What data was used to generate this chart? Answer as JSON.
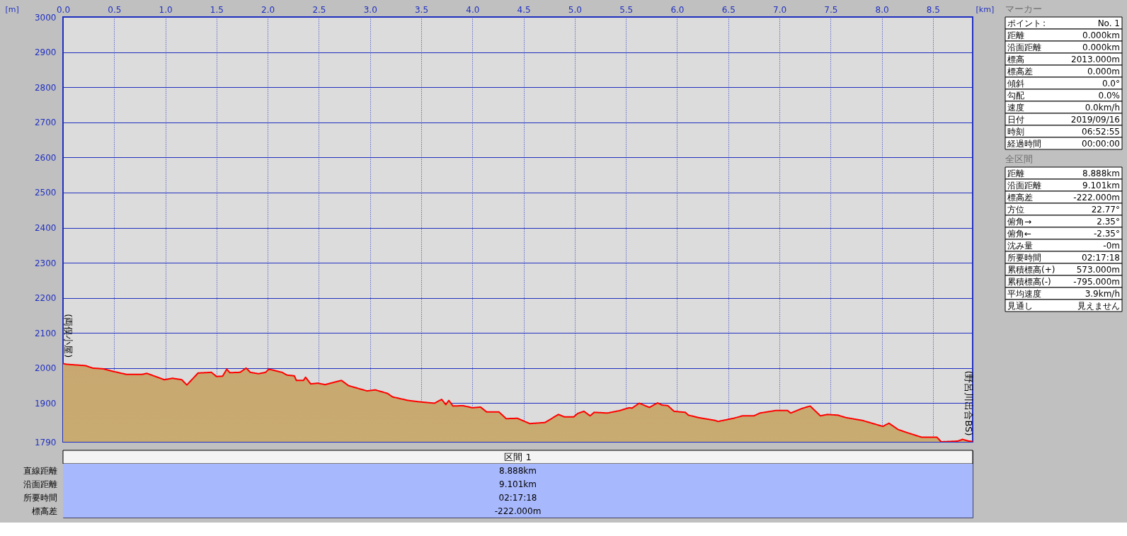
{
  "chart_data": [
    {
      "type": "area",
      "xlabel": "[km]",
      "ylabel": "[m]",
      "x": [
        0,
        0.03,
        0.22,
        0.29,
        0.39,
        0.47,
        0.62,
        0.77,
        0.82,
        0.99,
        1.07,
        1.16,
        1.21,
        1.32,
        1.45,
        1.5,
        1.56,
        1.6,
        1.63,
        1.73,
        1.79,
        1.83,
        1.91,
        1.98,
        2.01,
        2.04,
        2.14,
        2.19,
        2.26,
        2.28,
        2.35,
        2.37,
        2.42,
        2.49,
        2.56,
        2.72,
        2.79,
        2.97,
        3.05,
        3.17,
        3.22,
        3.37,
        3.48,
        3.63,
        3.7,
        3.74,
        3.77,
        3.81,
        3.91,
        4.0,
        4.08,
        4.14,
        4.26,
        4.33,
        4.44,
        4.56,
        4.71,
        4.84,
        4.9,
        4.99,
        5.03,
        5.09,
        5.15,
        5.19,
        5.32,
        5.44,
        5.53,
        5.56,
        5.63,
        5.73,
        5.81,
        5.85,
        5.91,
        5.97,
        6.08,
        6.11,
        6.21,
        6.37,
        6.4,
        6.55,
        6.64,
        6.75,
        6.81,
        6.96,
        7.08,
        7.11,
        7.22,
        7.3,
        7.4,
        7.47,
        7.57,
        7.65,
        7.81,
        8.01,
        8.07,
        8.16,
        8.25,
        8.39,
        8.54,
        8.58,
        8.74,
        8.79,
        8.85,
        8.888
      ],
      "series": [
        {
          "color": "#ff0000",
          "values": [
            2013,
            2011,
            2007,
            2000,
            1998,
            1992,
            1982,
            1982,
            1985,
            1967,
            1971,
            1967,
            1952,
            1986,
            1988,
            1976,
            1977,
            1997,
            1987,
            1988,
            2000,
            1988,
            1984,
            1988,
            1997,
            1995,
            1988,
            1980,
            1978,
            1965,
            1965,
            1974,
            1955,
            1957,
            1953,
            1965,
            1950,
            1935,
            1938,
            1928,
            1918,
            1908,
            1904,
            1900,
            1911,
            1896,
            1908,
            1892,
            1893,
            1887,
            1889,
            1875,
            1875,
            1856,
            1857,
            1842,
            1845,
            1868,
            1861,
            1861,
            1871,
            1877,
            1864,
            1874,
            1872,
            1879,
            1887,
            1886,
            1900,
            1888,
            1901,
            1895,
            1893,
            1877,
            1874,
            1866,
            1859,
            1851,
            1848,
            1857,
            1864,
            1864,
            1872,
            1879,
            1879,
            1872,
            1885,
            1892,
            1864,
            1868,
            1866,
            1859,
            1851,
            1834,
            1843,
            1825,
            1816,
            1803,
            1803,
            1790,
            1792,
            1797,
            1792,
            1791
          ]
        }
      ],
      "xlim": [
        0,
        8.888
      ],
      "ylim": [
        1790,
        3000
      ],
      "xticks": [
        {
          "value": 0,
          "label": "0.0"
        },
        0.5,
        {
          "value": 1,
          "label": "1.0"
        },
        1.5,
        {
          "value": 2,
          "label": "2.0"
        },
        2.5,
        {
          "value": 3,
          "label": "3.0"
        },
        3.5,
        {
          "value": 4,
          "label": "4.0"
        },
        4.5,
        {
          "value": 5,
          "label": "5.0"
        },
        5.5,
        {
          "value": 6,
          "label": "6.0"
        },
        6.5,
        {
          "value": 7,
          "label": "7.0"
        },
        7.5,
        {
          "value": 8,
          "label": "8.0"
        },
        8.5
      ],
      "yticks": [
        1790,
        1900,
        2000,
        2100,
        2200,
        2300,
        2400,
        2500,
        2600,
        2700,
        2800,
        2900,
        3000
      ],
      "grid": true,
      "annotations": [
        {
          "text": "(両俣小屋)",
          "x": 0,
          "y": 2013
        },
        {
          "text": "(野呂川出合BS)",
          "x": 8.888,
          "y": 1791
        }
      ]
    },
    {
      "type": "other",
      "title": "マーカー",
      "annotations": [
        ":"
      ],
      "categories": [
        "ポイント",
        "距離",
        "沿面距離",
        "標高",
        "標高差",
        "傾斜",
        "勾配",
        "速度",
        "日付",
        "時刻",
        "経過時間"
      ],
      "value_labels": [
        "No. 1",
        "0.000km",
        "0.000km",
        "2013.000m",
        "0.000m",
        "0.0°",
        "0.0%",
        "0.0km/h",
        "2019/09/16",
        "06:52:55",
        "00:00:00"
      ]
    },
    {
      "type": "other",
      "title": "全区間",
      "categories": [
        "距離",
        "沿面距離",
        "標高差",
        "方位",
        "俯角→",
        "俯角←",
        "沈み量",
        "所要時間",
        "累積標高(+)",
        "累積標高(-)",
        "平均速度",
        "見通し"
      ],
      "value_labels": [
        "8.888km",
        "9.101km",
        "-222.000m",
        "22.77°",
        "2.35°",
        "-2.35°",
        "-0m",
        "02:17:18",
        "573.000m",
        "-795.000m",
        "3.9km/h",
        "見えません"
      ]
    },
    {
      "type": "other",
      "title": "区間 1",
      "categories": [
        "直線距離",
        "沿面距離",
        "所要時間",
        "標高差"
      ],
      "value_labels": [
        "8.888km",
        "9.101km",
        "02:17:18",
        "-222.000m"
      ]
    }
  ]
}
